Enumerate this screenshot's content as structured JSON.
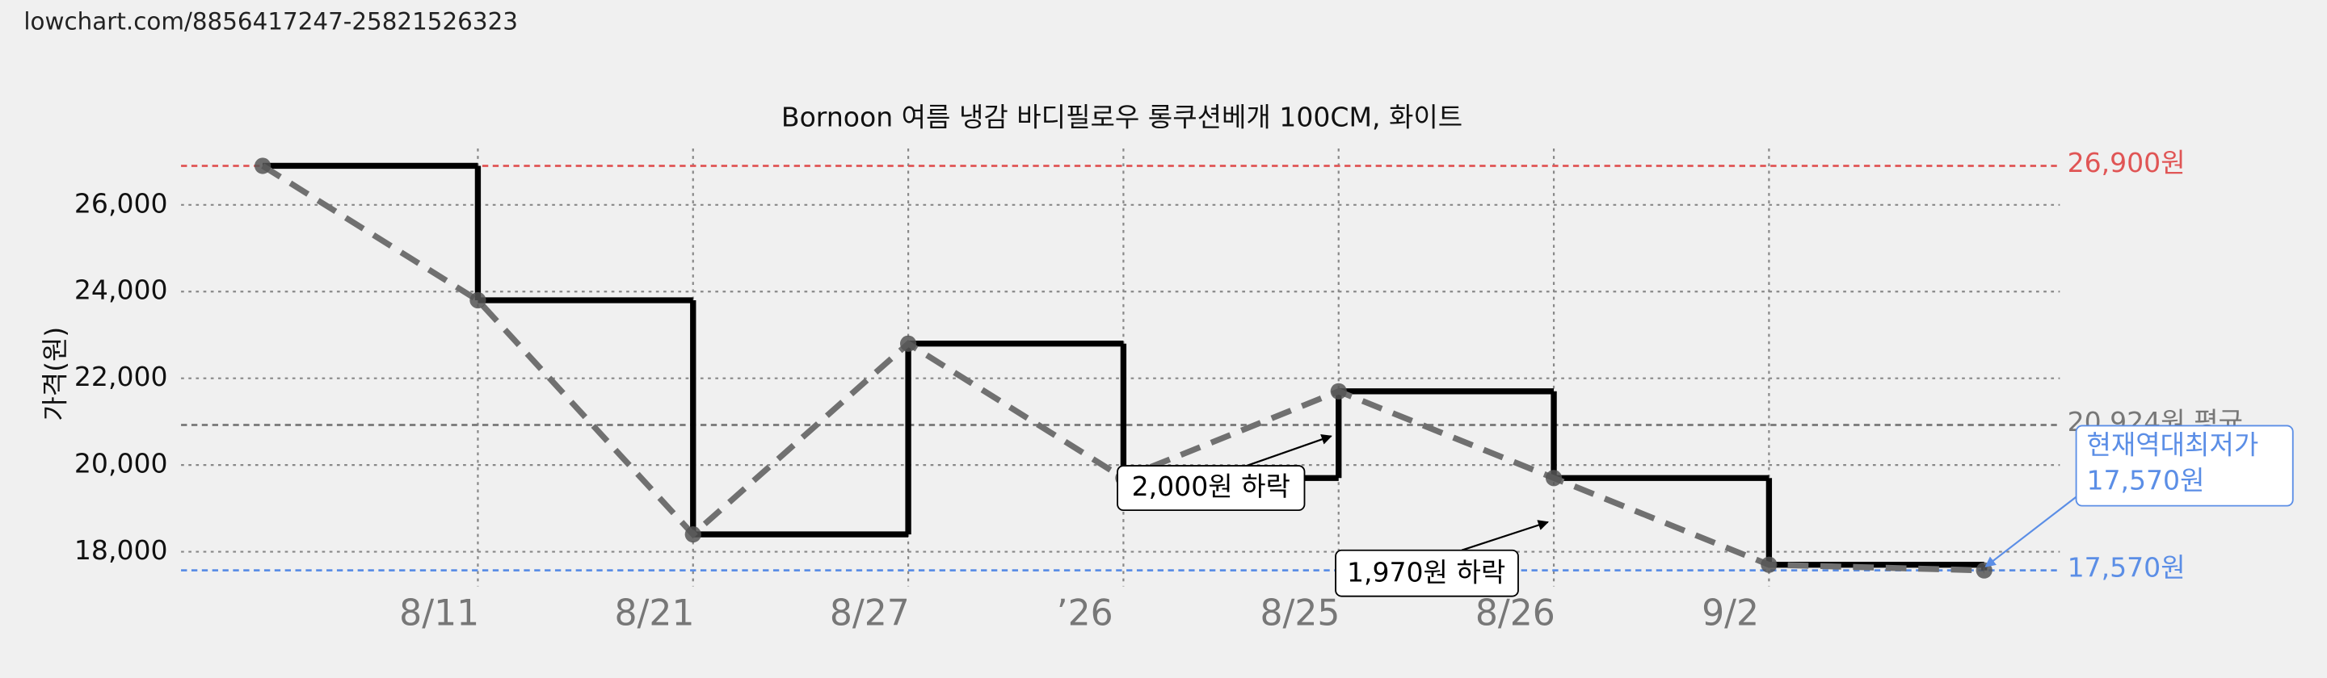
{
  "header": {
    "url": "lowchart.com/8856417247-25821526323"
  },
  "chart_data": {
    "type": "step-line",
    "title": "Bornoon 여름 냉감 바디필로우 롱쿠션베개 100CM, 화이트",
    "y_label": "가격(원)",
    "categories": [
      null,
      "8/11",
      "8/21",
      "8/27",
      "’26",
      "8/25",
      "8/26",
      "9/2",
      null
    ],
    "series": [
      {
        "name": "가격",
        "color": "#000000",
        "values": [
          26900,
          23800,
          18400,
          22800,
          19700,
          21700,
          19700,
          17700,
          17570
        ]
      }
    ],
    "ylim": [
      17200,
      27300
    ],
    "yticks": [
      {
        "value": 18000,
        "label": "18,000"
      },
      {
        "value": 20000,
        "label": "20,000"
      },
      {
        "value": 22000,
        "label": "22,000"
      },
      {
        "value": 24000,
        "label": "24,000"
      },
      {
        "value": 26000,
        "label": "26,000"
      }
    ],
    "grid": true,
    "reference_lines": [
      {
        "value": 26900,
        "label": "26,900원",
        "color": "#e05555"
      },
      {
        "value": 20924,
        "label": "20,924원 평균",
        "color": "#777777"
      },
      {
        "value": 17570,
        "label": "17,570원",
        "color": "#5b8ee6"
      }
    ],
    "annotations": [
      {
        "text": "2,000원 하락"
      },
      {
        "text": "1,970원 하락"
      },
      {
        "lines": [
          "현재역대최저가",
          "17,570원"
        ]
      }
    ]
  }
}
